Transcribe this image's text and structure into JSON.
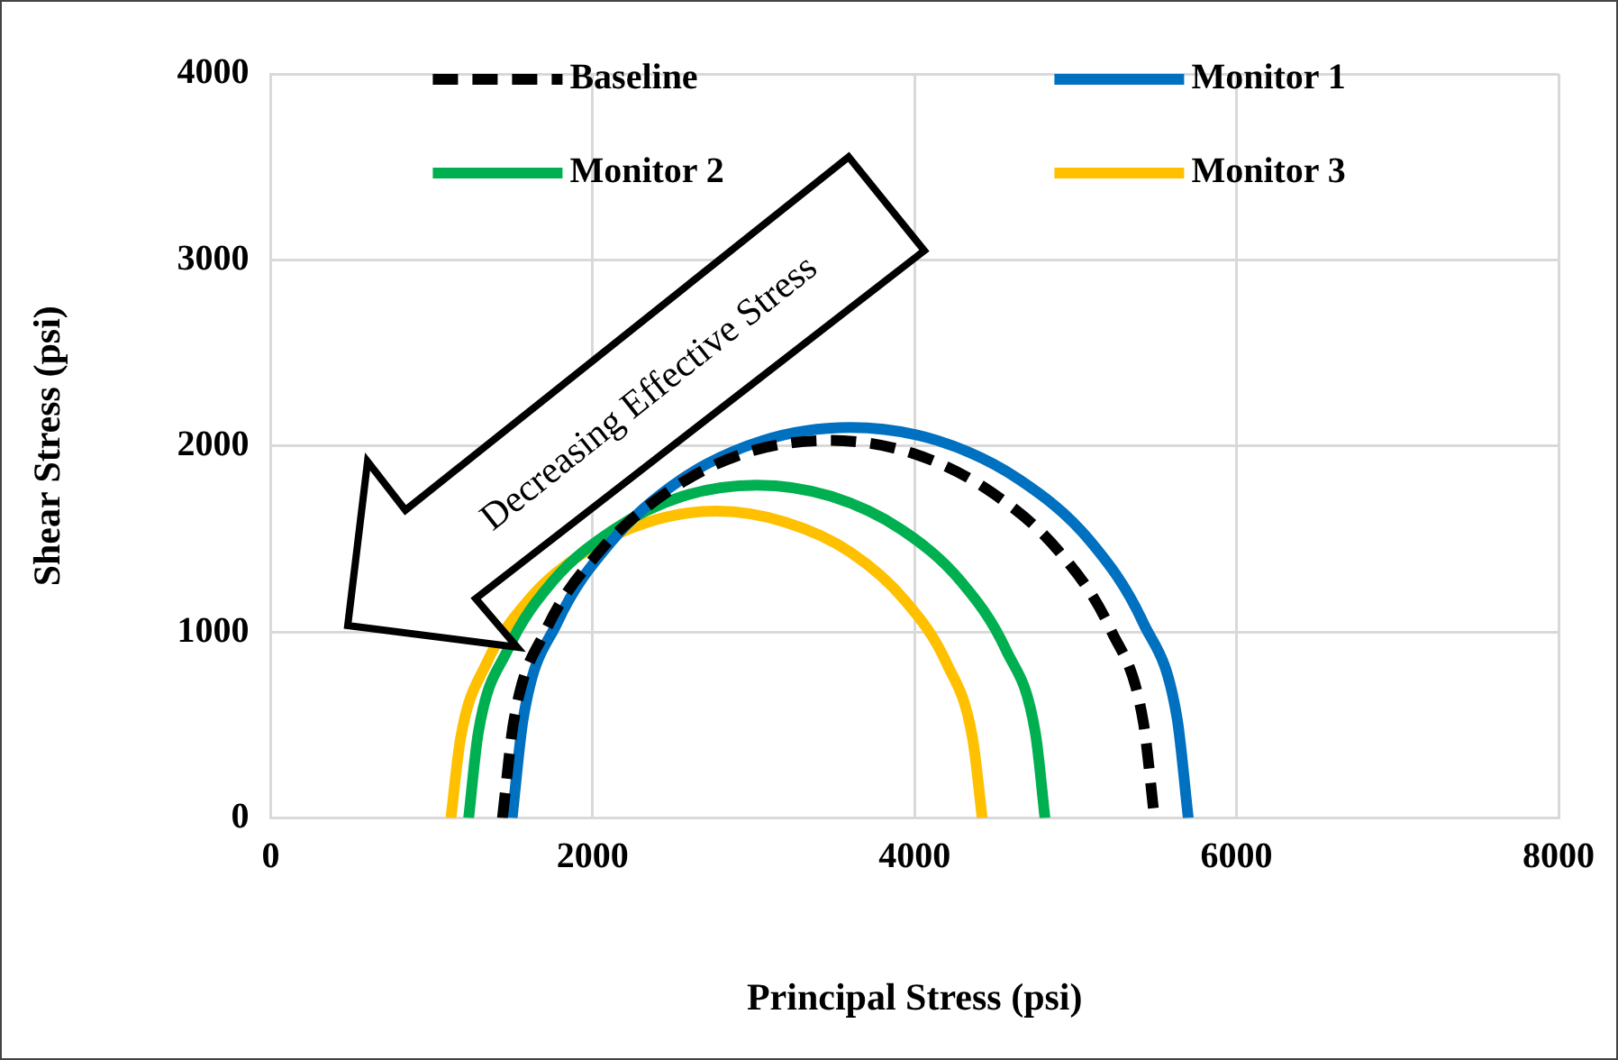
{
  "chart_data": {
    "type": "line",
    "xlabel": "Principal Stress (psi)",
    "ylabel": "Shear Stress (psi)",
    "xlim": [
      0,
      8000
    ],
    "xticks": [
      0,
      2000,
      4000,
      6000,
      8000
    ],
    "ylim": [
      0,
      4000
    ],
    "yticks": [
      0,
      1000,
      2000,
      3000,
      4000
    ],
    "grid": true,
    "legend": "top",
    "marker": "none",
    "annotations": [
      "Decreasing Effective Stress"
    ],
    "series": [
      {
        "name": "Baseline",
        "color": "#000000",
        "line_style": "dashed",
        "x": [
          1440,
          1510,
          1710,
          2040,
          2460,
          2940,
          3470,
          3990,
          4480,
          4900,
          5220,
          5420,
          5490
        ],
        "values": [
          0,
          520,
          1010,
          1430,
          1750,
          1960,
          2030,
          1960,
          1750,
          1430,
          1010,
          520,
          0
        ]
      },
      {
        "name": "Monitor 1",
        "color": "#0070c0",
        "line_style": "solid",
        "x": [
          1500,
          1570,
          1780,
          2120,
          2550,
          3060,
          3600,
          4140,
          4650,
          5090,
          5420,
          5630,
          5700
        ],
        "values": [
          0,
          540,
          1050,
          1490,
          1820,
          2030,
          2100,
          2030,
          1820,
          1490,
          1050,
          540,
          0
        ]
      },
      {
        "name": "Monitor 2",
        "color": "#00b050",
        "line_style": "solid",
        "x": [
          1230,
          1290,
          1470,
          1750,
          2130,
          2560,
          3020,
          3480,
          3920,
          4290,
          4570,
          4750,
          4810
        ],
        "values": [
          0,
          460,
          900,
          1270,
          1550,
          1730,
          1790,
          1730,
          1550,
          1270,
          900,
          460,
          0
        ]
      },
      {
        "name": "Monitor 3",
        "color": "#ffc000",
        "line_style": "solid",
        "x": [
          1120,
          1180,
          1340,
          1600,
          1950,
          2340,
          2770,
          3200,
          3600,
          3940,
          4200,
          4360,
          4420
        ],
        "values": [
          0,
          430,
          830,
          1170,
          1430,
          1590,
          1650,
          1590,
          1430,
          1170,
          830,
          430,
          0
        ]
      }
    ]
  }
}
